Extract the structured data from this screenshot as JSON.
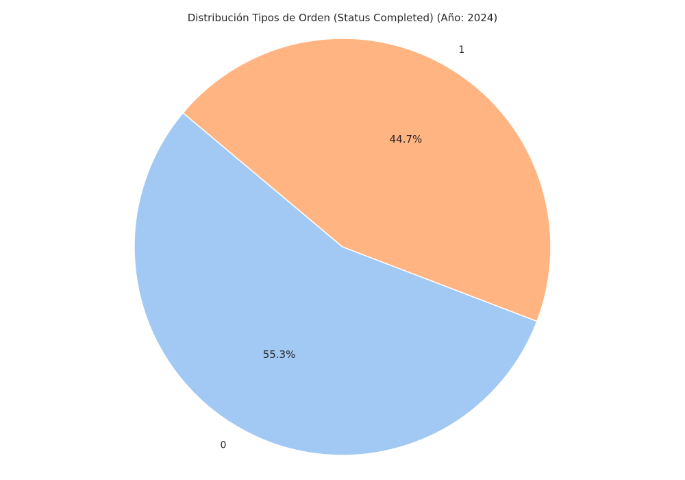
{
  "chart_data": {
    "type": "pie",
    "title": "Distribución Tipos de Orden (Status Completed) (Año: 2024)",
    "slices": [
      {
        "label": "0",
        "percent": 55.3,
        "percent_label": "55.3%",
        "color": "#a1c9f4"
      },
      {
        "label": "1",
        "percent": 44.7,
        "percent_label": "44.7%",
        "color": "#ffb482"
      }
    ],
    "start_angle_deg": 140,
    "direction": "counterclockwise",
    "legend": "none"
  }
}
